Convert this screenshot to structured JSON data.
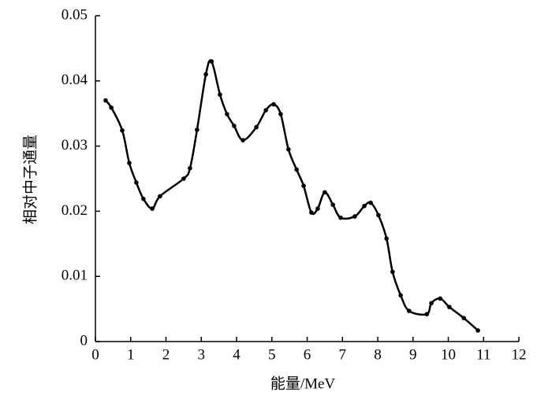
{
  "chart_data": {
    "type": "scatter",
    "line": true,
    "color": "#000000",
    "xlabel": "能量/MeV",
    "ylabel": "相对中子通量",
    "x": [
      0.29,
      0.45,
      0.76,
      0.96,
      1.16,
      1.36,
      1.61,
      1.83,
      2.5,
      2.68,
      2.88,
      3.13,
      3.29,
      3.53,
      3.73,
      3.93,
      4.18,
      4.56,
      4.83,
      5.05,
      5.25,
      5.47,
      5.7,
      5.9,
      6.12,
      6.3,
      6.5,
      6.73,
      6.95,
      7.35,
      7.62,
      7.8,
      8.02,
      8.25,
      8.42,
      8.65,
      8.89,
      9.39,
      9.52,
      9.77,
      10.03,
      10.44,
      10.84
    ],
    "values": [
      0.037,
      0.0359,
      0.0324,
      0.0274,
      0.0244,
      0.0219,
      0.0204,
      0.0223,
      0.025,
      0.0266,
      0.0325,
      0.041,
      0.043,
      0.0379,
      0.0349,
      0.0331,
      0.0309,
      0.0329,
      0.0355,
      0.0364,
      0.0349,
      0.0295,
      0.0264,
      0.0239,
      0.0198,
      0.0204,
      0.0229,
      0.021,
      0.019,
      0.0192,
      0.0208,
      0.0213,
      0.0194,
      0.0158,
      0.0107,
      0.0071,
      0.0047,
      0.0042,
      0.0059,
      0.0066,
      0.0053,
      0.0036,
      0.0017
    ],
    "xlim": [
      0,
      12
    ],
    "xticks": [
      0,
      1,
      2,
      3,
      4,
      5,
      6,
      7,
      8,
      9,
      10,
      11,
      12
    ],
    "ylim": [
      0,
      0.05
    ],
    "yticks": [
      0,
      0.01,
      0.02,
      0.03,
      0.04,
      0.05
    ]
  }
}
